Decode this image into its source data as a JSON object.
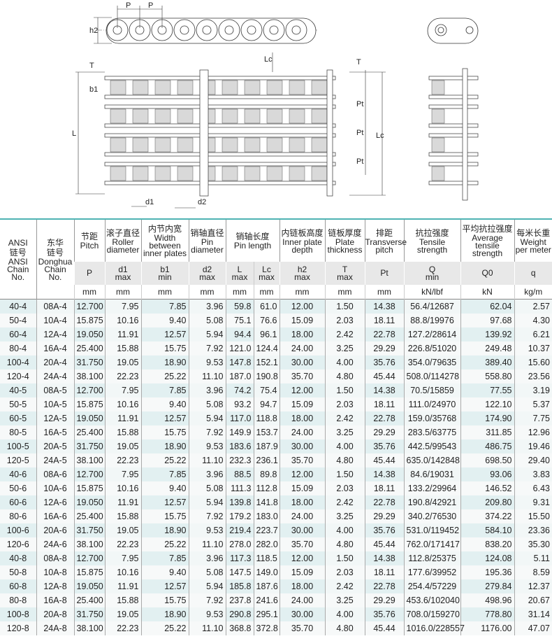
{
  "diagram_labels": {
    "pitch_1": "P",
    "pitch_2": "P",
    "h2": "h2",
    "L": "L",
    "T_left": "T",
    "b1": "b1",
    "Lc_top": "Lc",
    "T_right": "T",
    "Pt_1": "Pt",
    "Pt_2": "Pt",
    "Pt_3": "Pt",
    "Lc_right": "Lc",
    "d1": "d1",
    "d2": "d2"
  },
  "table": {
    "headers": [
      {
        "cn": "ANSI\n链号",
        "en": "ANSI Chain No."
      },
      {
        "cn": "东华\n链号",
        "en": "Donghua Chain No."
      },
      {
        "cn": "节距",
        "en": "Pitch",
        "sym": "P",
        "sub": "",
        "unit": "mm"
      },
      {
        "cn": "滚子直径",
        "en": "Roller diameter",
        "sym": "d1",
        "sub": "max",
        "unit": "mm"
      },
      {
        "cn": "内节内宽",
        "en": "Width between inner plates",
        "sym": "b1",
        "sub": "min",
        "unit": "mm"
      },
      {
        "cn": "销轴直径",
        "en": "Pin diameter",
        "sym": "d2",
        "sub": "max",
        "unit": "mm"
      },
      {
        "cn": "销轴长度",
        "en": "Pin length",
        "sym": "L",
        "sub": "max",
        "unit": "mm",
        "sym2": "Lc",
        "sub2": "max",
        "unit2": "mm"
      },
      {
        "cn": "内链板高度",
        "en": "Inner plate depth",
        "sym": "h2",
        "sub": "max",
        "unit": "mm"
      },
      {
        "cn": "链板厚度",
        "en": "Plate thickness",
        "sym": "T",
        "sub": "max",
        "unit": "mm"
      },
      {
        "cn": "排距",
        "en": "Transverse pitch",
        "sym": "Pt",
        "sub": "",
        "unit": "mm"
      },
      {
        "cn": "抗拉强度",
        "en": "Tensile strength",
        "sym": "Q",
        "sub": "min",
        "unit": "kN/lbf"
      },
      {
        "cn": "平均抗拉强度",
        "en": "Average tensile strength",
        "sym": "Q0",
        "sub": "",
        "unit": "kN"
      },
      {
        "cn": "每米长重",
        "en": "Weight per meter",
        "sym": "q",
        "sub": "",
        "unit": "kg/m"
      }
    ],
    "rows": [
      [
        "40-4",
        "08A-4",
        "12.700",
        "7.95",
        "7.85",
        "3.96",
        "59.8",
        "61.0",
        "12.00",
        "1.50",
        "14.38",
        "56.4/12687",
        "62.04",
        "2.57"
      ],
      [
        "50-4",
        "10A-4",
        "15.875",
        "10.16",
        "9.40",
        "5.08",
        "75.1",
        "76.6",
        "15.09",
        "2.03",
        "18.11",
        "88.8/19976",
        "97.68",
        "4.30"
      ],
      [
        "60-4",
        "12A-4",
        "19.050",
        "11.91",
        "12.57",
        "5.94",
        "94.4",
        "96.1",
        "18.00",
        "2.42",
        "22.78",
        "127.2/28614",
        "139.92",
        "6.21"
      ],
      [
        "80-4",
        "16A-4",
        "25.400",
        "15.88",
        "15.75",
        "7.92",
        "121.0",
        "124.4",
        "24.00",
        "3.25",
        "29.29",
        "226.8/51020",
        "249.48",
        "10.37"
      ],
      [
        "100-4",
        "20A-4",
        "31.750",
        "19.05",
        "18.90",
        "9.53",
        "147.8",
        "152.1",
        "30.00",
        "4.00",
        "35.76",
        "354.0/79635",
        "389.40",
        "15.60"
      ],
      [
        "120-4",
        "24A-4",
        "38.100",
        "22.23",
        "25.22",
        "11.10",
        "187.0",
        "190.8",
        "35.70",
        "4.80",
        "45.44",
        "508.0/114278",
        "558.80",
        "23.56"
      ],
      [
        "40-5",
        "08A-5",
        "12.700",
        "7.95",
        "7.85",
        "3.96",
        "74.2",
        "75.4",
        "12.00",
        "1.50",
        "14.38",
        "70.5/15859",
        "77.55",
        "3.19"
      ],
      [
        "50-5",
        "10A-5",
        "15.875",
        "10.16",
        "9.40",
        "5.08",
        "93.2",
        "94.7",
        "15.09",
        "2.03",
        "18.11",
        "111.0/24970",
        "122.10",
        "5.37"
      ],
      [
        "60-5",
        "12A-5",
        "19.050",
        "11.91",
        "12.57",
        "5.94",
        "117.0",
        "118.8",
        "18.00",
        "2.42",
        "22.78",
        "159.0/35768",
        "174.90",
        "7.75"
      ],
      [
        "80-5",
        "16A-5",
        "25.400",
        "15.88",
        "15.75",
        "7.92",
        "149.9",
        "153.7",
        "24.00",
        "3.25",
        "29.29",
        "283.5/63775",
        "311.85",
        "12.96"
      ],
      [
        "100-5",
        "20A-5",
        "31.750",
        "19.05",
        "18.90",
        "9.53",
        "183.6",
        "187.9",
        "30.00",
        "4.00",
        "35.76",
        "442.5/99543",
        "486.75",
        "19.46"
      ],
      [
        "120-5",
        "24A-5",
        "38.100",
        "22.23",
        "25.22",
        "11.10",
        "232.3",
        "236.1",
        "35.70",
        "4.80",
        "45.44",
        "635.0/142848",
        "698.50",
        "29.40"
      ],
      [
        "40-6",
        "08A-6",
        "12.700",
        "7.95",
        "7.85",
        "3.96",
        "88.5",
        "89.8",
        "12.00",
        "1.50",
        "14.38",
        "84.6/19031",
        "93.06",
        "3.83"
      ],
      [
        "50-6",
        "10A-6",
        "15.875",
        "10.16",
        "9.40",
        "5.08",
        "111.3",
        "112.8",
        "15.09",
        "2.03",
        "18.11",
        "133.2/29964",
        "146.52",
        "6.43"
      ],
      [
        "60-6",
        "12A-6",
        "19.050",
        "11.91",
        "12.57",
        "5.94",
        "139.8",
        "141.8",
        "18.00",
        "2.42",
        "22.78",
        "190.8/42921",
        "209.80",
        "9.31"
      ],
      [
        "80-6",
        "16A-6",
        "25.400",
        "15.88",
        "15.75",
        "7.92",
        "179.2",
        "183.0",
        "24.00",
        "3.25",
        "29.29",
        "340.2/76530",
        "374.22",
        "15.50"
      ],
      [
        "100-6",
        "20A-6",
        "31.750",
        "19.05",
        "18.90",
        "9.53",
        "219.4",
        "223.7",
        "30.00",
        "4.00",
        "35.76",
        "531.0/119452",
        "584.10",
        "23.36"
      ],
      [
        "120-6",
        "24A-6",
        "38.100",
        "22.23",
        "25.22",
        "11.10",
        "278.0",
        "282.0",
        "35.70",
        "4.80",
        "45.44",
        "762.0/171417",
        "838.20",
        "35.30"
      ],
      [
        "40-8",
        "08A-8",
        "12.700",
        "7.95",
        "7.85",
        "3.96",
        "117.3",
        "118.5",
        "12.00",
        "1.50",
        "14.38",
        "112.8/25375",
        "124.08",
        "5.11"
      ],
      [
        "50-8",
        "10A-8",
        "15.875",
        "10.16",
        "9.40",
        "5.08",
        "147.5",
        "149.0",
        "15.09",
        "2.03",
        "18.11",
        "177.6/39952",
        "195.36",
        "8.59"
      ],
      [
        "60-8",
        "12A-8",
        "19.050",
        "11.91",
        "12.57",
        "5.94",
        "185.8",
        "187.6",
        "18.00",
        "2.42",
        "22.78",
        "254.4/57229",
        "279.84",
        "12.37"
      ],
      [
        "80-8",
        "16A-8",
        "25.400",
        "15.88",
        "15.75",
        "7.92",
        "237.8",
        "241.6",
        "24.00",
        "3.25",
        "29.29",
        "453.6/102040",
        "498.96",
        "20.67"
      ],
      [
        "100-8",
        "20A-8",
        "31.750",
        "19.05",
        "18.90",
        "9.53",
        "290.8",
        "295.1",
        "30.00",
        "4.00",
        "35.76",
        "708.0/159270",
        "778.80",
        "31.14"
      ],
      [
        "120-8",
        "24A-8",
        "38.100",
        "22.23",
        "25.22",
        "11.10",
        "368.8",
        "372.8",
        "35.70",
        "4.80",
        "45.44",
        "1016.0/228557",
        "1176.00",
        "47.07"
      ]
    ]
  },
  "colors": {
    "header_rule": "#4fb3b3",
    "row_tint": "#e2f0f1",
    "symbol_row_bg": "#e8e8e8"
  }
}
